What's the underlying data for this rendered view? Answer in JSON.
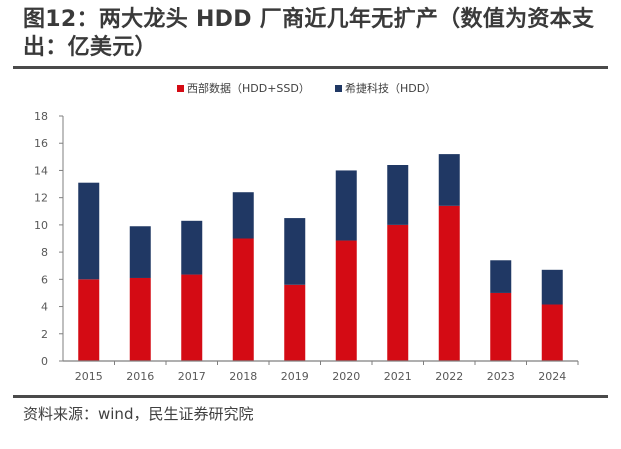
{
  "title": "图12：两大龙头 HDD 厂商近几年无扩产（数值为资本支出：亿美元）",
  "source": "资料来源：wind，民生证券研究院",
  "colors": {
    "wdc": "#d40b14",
    "seagate": "#203864",
    "axis": "#7f7f7f"
  },
  "chart_data": {
    "type": "bar",
    "stacked": true,
    "title": "两大龙头 HDD 厂商近几年无扩产（数值为资本支出：亿美元）",
    "xlabel": "",
    "ylabel": "",
    "ylim": [
      0,
      18
    ],
    "yticks": [
      0,
      2,
      4,
      6,
      8,
      10,
      12,
      14,
      16,
      18
    ],
    "grid": false,
    "legend_position": "top",
    "categories": [
      "2015",
      "2016",
      "2017",
      "2018",
      "2019",
      "2020",
      "2021",
      "2022",
      "2023",
      "2024"
    ],
    "series": [
      {
        "name": "西部数据（HDD+SSD）",
        "color": "#d40b14",
        "values": [
          6.0,
          6.1,
          6.35,
          9.0,
          5.6,
          8.85,
          10.0,
          11.4,
          5.0,
          4.15
        ]
      },
      {
        "name": "希捷科技（HDD）",
        "color": "#203864",
        "values": [
          7.1,
          3.8,
          3.95,
          3.4,
          4.9,
          5.15,
          4.4,
          3.8,
          2.4,
          2.55
        ]
      }
    ]
  }
}
